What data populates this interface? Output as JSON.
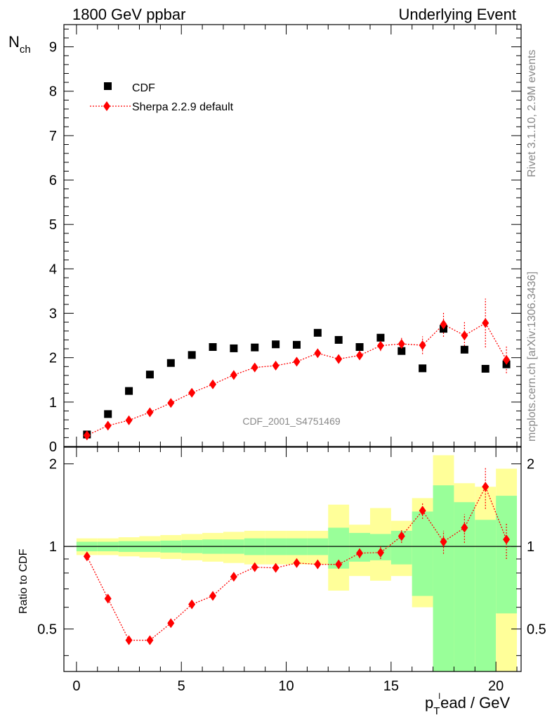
{
  "header": {
    "left_title": "1800 GeV ppbar",
    "right_title": "Underlying Event"
  },
  "side_labels": {
    "rivet": "Rivet 3.1.10,  2.9M events",
    "mcplots": "mcplots.cern.ch [arXiv:1306.3436]"
  },
  "watermark": "CDF_2001_S4751469",
  "axes": {
    "ylabel_main": "N",
    "ylabel_main_sub": "ch",
    "ylabel_ratio": "Ratio to CDF",
    "xlabel_p": "p",
    "xlabel_sub": "T",
    "xlabel_sup": "l",
    "xlabel_rest": "ead / GeV"
  },
  "legend": {
    "items": [
      {
        "label": "CDF",
        "marker": "square",
        "color": "#000000"
      },
      {
        "label": "Sherpa 2.2.9 default",
        "marker": "diamond",
        "color": "#ff0000"
      }
    ]
  },
  "colors": {
    "band_inner": "#99ff99",
    "band_outer": "#ffff99",
    "mc": "#ff0000",
    "data": "#000000"
  },
  "chart_data": {
    "type": "scatter",
    "x": [
      0.5,
      1.5,
      2.5,
      3.5,
      4.5,
      5.5,
      6.5,
      7.5,
      8.5,
      9.5,
      10.5,
      11.5,
      12.5,
      13.5,
      14.5,
      15.5,
      16.5,
      17.5,
      18.5,
      19.5,
      20.5
    ],
    "xlim": [
      -0.6,
      21.2
    ],
    "xticks": [
      0,
      5,
      10,
      15,
      20
    ],
    "main": {
      "ylim": [
        0,
        9.5
      ],
      "yticks": [
        0,
        1,
        2,
        3,
        4,
        5,
        6,
        7,
        8,
        9
      ],
      "series": [
        {
          "name": "CDF",
          "values": [
            0.27,
            0.73,
            1.25,
            1.62,
            1.88,
            2.06,
            2.24,
            2.21,
            2.23,
            2.3,
            2.29,
            2.56,
            2.4,
            2.24,
            2.45,
            2.15,
            1.76,
            2.65,
            2.18,
            1.75,
            1.85
          ]
        },
        {
          "name": "Sherpa 2.2.9 default",
          "values": [
            0.25,
            0.47,
            0.59,
            0.77,
            0.98,
            1.21,
            1.4,
            1.61,
            1.78,
            1.82,
            1.91,
            2.1,
            1.97,
            2.05,
            2.27,
            2.31,
            2.28,
            2.75,
            2.5,
            2.78,
            1.95
          ],
          "errors": [
            0.02,
            0.02,
            0.02,
            0.03,
            0.03,
            0.04,
            0.04,
            0.05,
            0.05,
            0.05,
            0.06,
            0.07,
            0.08,
            0.09,
            0.12,
            0.15,
            0.2,
            0.28,
            0.3,
            0.55,
            0.3
          ]
        }
      ]
    },
    "ratio": {
      "ylim": [
        0.35,
        2.3
      ],
      "yticks": [
        0.5,
        1,
        2
      ],
      "reference": 1,
      "band_inner_lo": [
        0.96,
        0.96,
        0.955,
        0.955,
        0.95,
        0.945,
        0.94,
        0.94,
        0.93,
        0.93,
        0.93,
        0.93,
        0.83,
        0.88,
        0.89,
        0.86,
        0.66,
        0.35,
        0.35,
        0.35,
        0.57
      ],
      "band_inner_hi": [
        1.04,
        1.04,
        1.045,
        1.045,
        1.05,
        1.055,
        1.06,
        1.06,
        1.07,
        1.07,
        1.07,
        1.07,
        1.17,
        1.12,
        1.11,
        1.14,
        1.34,
        1.67,
        1.45,
        1.25,
        1.53
      ],
      "band_outer_lo": [
        0.93,
        0.93,
        0.92,
        0.91,
        0.9,
        0.89,
        0.88,
        0.87,
        0.86,
        0.86,
        0.86,
        0.86,
        0.69,
        0.78,
        0.75,
        0.78,
        0.6,
        0.35,
        0.35,
        0.35,
        0.35
      ],
      "band_outer_hi": [
        1.07,
        1.07,
        1.08,
        1.09,
        1.1,
        1.11,
        1.12,
        1.13,
        1.14,
        1.14,
        1.14,
        1.14,
        1.42,
        1.2,
        1.38,
        1.24,
        1.5,
        2.15,
        1.7,
        1.65,
        1.92
      ],
      "series": [
        {
          "name": "Sherpa 2.2.9 default",
          "values": [
            0.92,
            0.645,
            0.455,
            0.455,
            0.525,
            0.615,
            0.66,
            0.775,
            0.84,
            0.835,
            0.87,
            0.86,
            0.86,
            0.945,
            0.95,
            1.09,
            1.35,
            1.04,
            1.17,
            1.65,
            1.06
          ],
          "errors": [
            0.01,
            0.01,
            0.01,
            0.01,
            0.01,
            0.015,
            0.015,
            0.015,
            0.02,
            0.02,
            0.02,
            0.02,
            0.03,
            0.04,
            0.05,
            0.06,
            0.09,
            0.1,
            0.14,
            0.28,
            0.16
          ]
        }
      ]
    }
  }
}
